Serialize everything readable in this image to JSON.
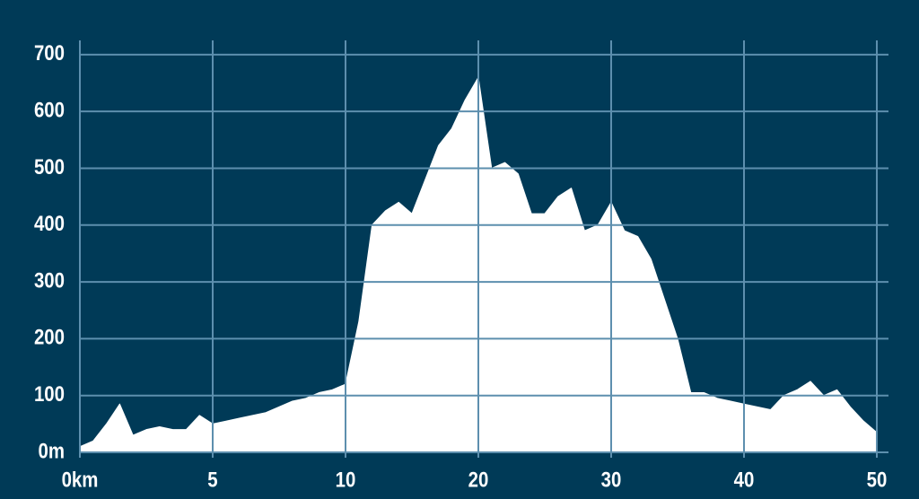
{
  "chart_data": {
    "type": "area",
    "categories": [
      null,
      null,
      null,
      null,
      null,
      null,
      null,
      null,
      null,
      null,
      null,
      null,
      null,
      null,
      null,
      null,
      null,
      null,
      null,
      null,
      null,
      null,
      null,
      null,
      null,
      null,
      null,
      null,
      null,
      null,
      null,
      null,
      null,
      null,
      null,
      null,
      null,
      null,
      null,
      null,
      null,
      null,
      null,
      null,
      null,
      null,
      null,
      null,
      null,
      null,
      null,
      null,
      null,
      null,
      null,
      null,
      null,
      null,
      null,
      null,
      null
    ],
    "values": [
      10,
      20,
      50,
      85,
      30,
      40,
      45,
      40,
      40,
      65,
      50,
      55,
      60,
      65,
      70,
      80,
      90,
      95,
      105,
      110,
      120,
      230,
      400,
      425,
      440,
      420,
      480,
      540,
      570,
      620,
      660,
      500,
      510,
      490,
      420,
      420,
      450,
      465,
      390,
      400,
      440,
      390,
      380,
      340,
      270,
      200,
      105,
      105,
      95,
      90,
      85,
      80,
      75,
      100,
      110,
      125,
      100,
      110,
      80,
      55,
      35
    ],
    "color": "#ffffff",
    "xtick_labels": [
      "0km",
      "5",
      "10",
      "20",
      "30",
      "40",
      "50"
    ],
    "ylim": [
      0,
      725
    ],
    "yticks": [
      {
        "value": 0,
        "label": "0m"
      },
      100,
      200,
      300,
      400,
      500,
      600,
      700
    ],
    "grid": true
  }
}
